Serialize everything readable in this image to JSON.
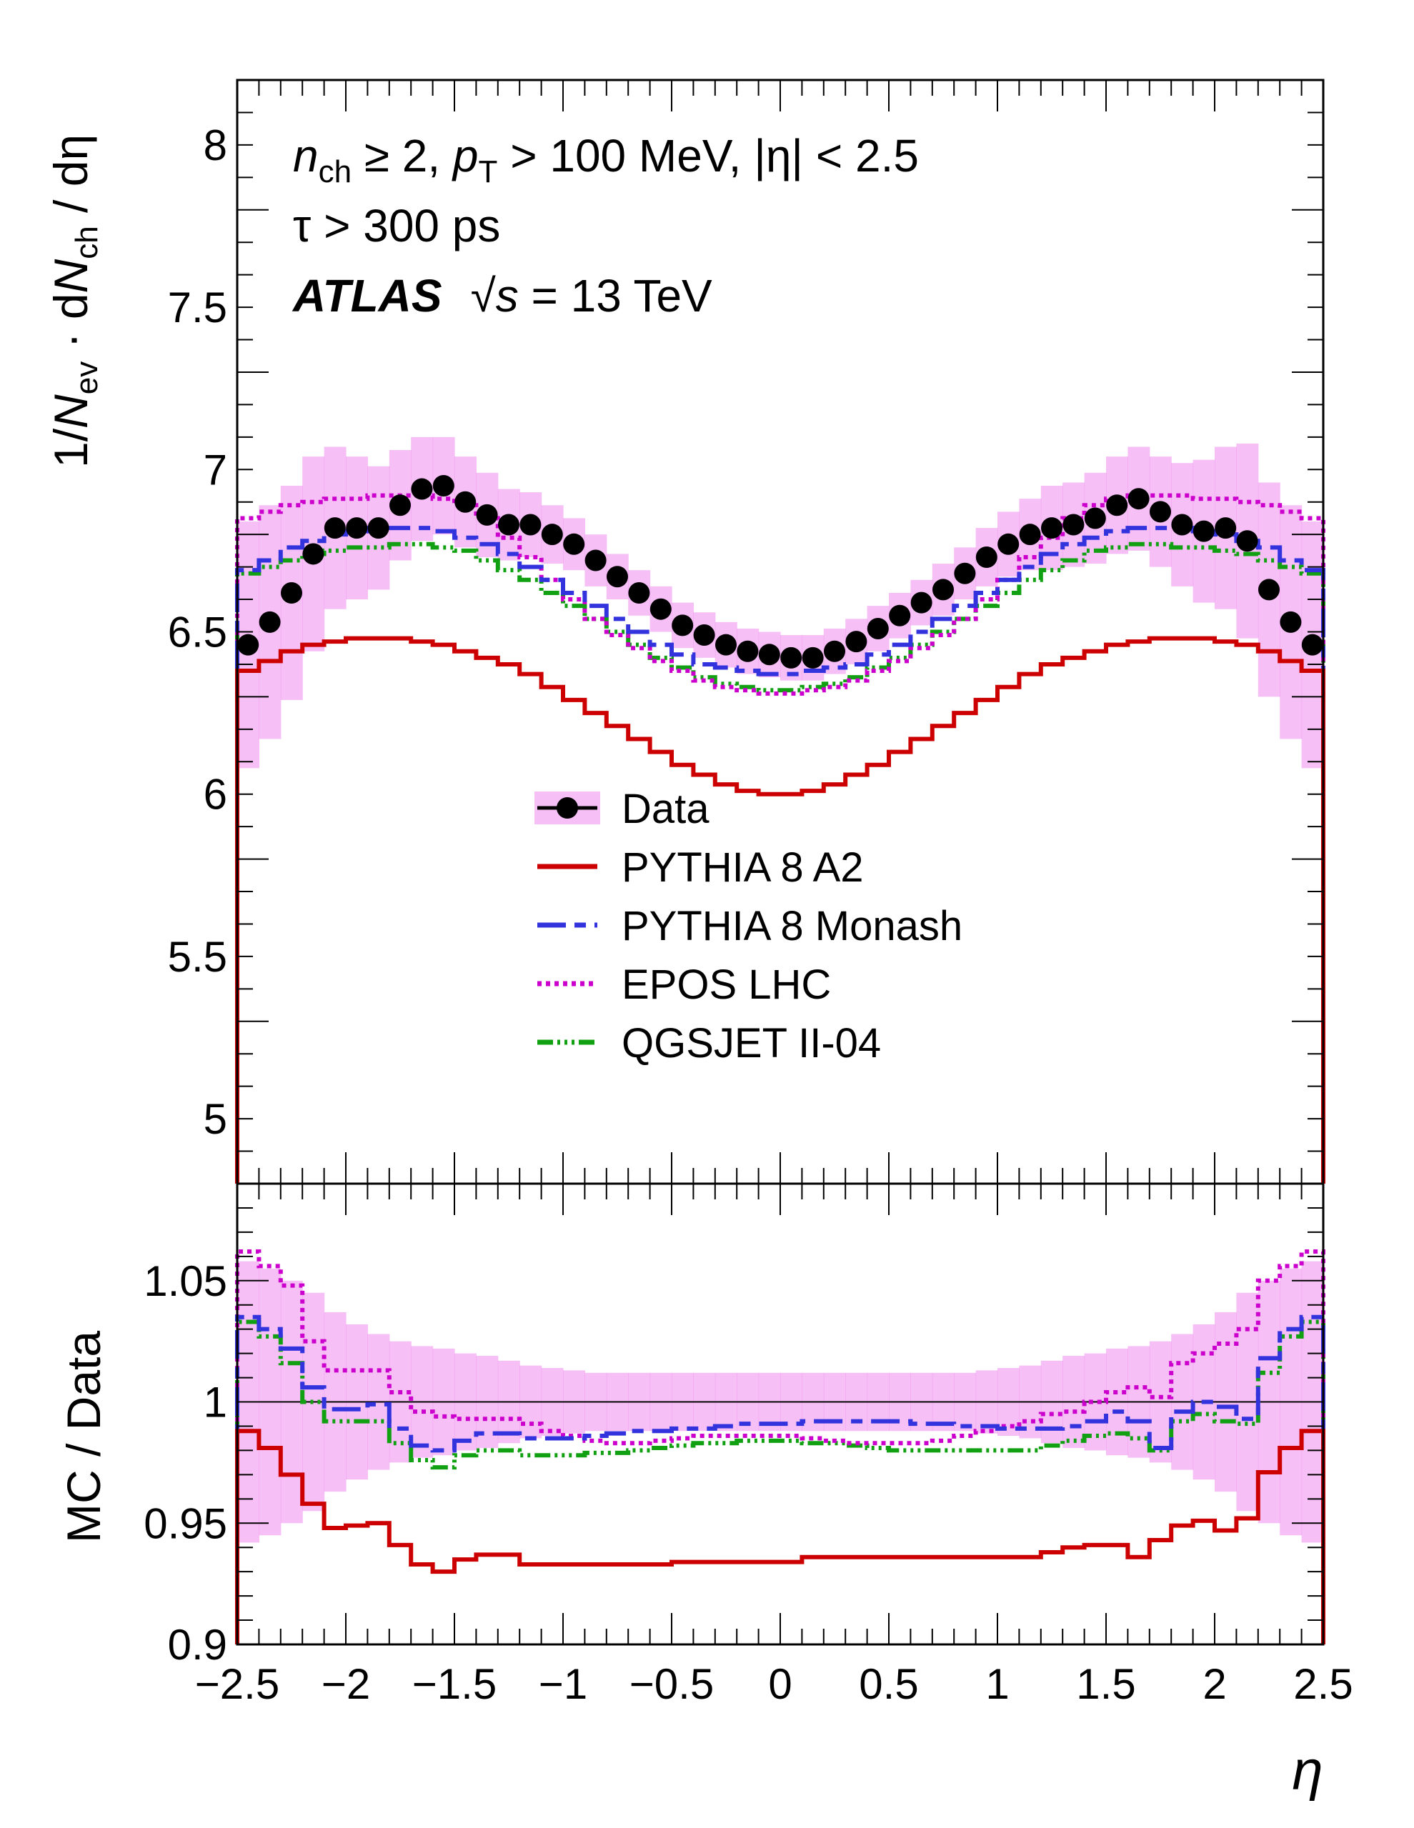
{
  "colors": {
    "data": "#000000",
    "band": "#ee82ee",
    "a2": "#cc0000",
    "monash": "#3333dd",
    "epos": "#cc00cc",
    "qgsjet": "#11a011"
  },
  "annotations": {
    "line1": {
      "nch": "n",
      "nch_sub": "ch",
      "ge": " ≥ 2, ",
      "pt": "p",
      "pt_sub": "T",
      "pt_cut": " > 100 MeV, ",
      "eta": "|η| < 2.5"
    },
    "line2": "τ > 300 ps",
    "line3": {
      "atlas": "ATLAS",
      "sqrt": "√",
      "s": "s",
      "energy": " = 13 TeV"
    }
  },
  "legend": [
    "Data",
    "PYTHIA 8 A2",
    "PYTHIA 8 Monash",
    "EPOS LHC",
    "QGSJET II-04"
  ],
  "chart_data": [
    {
      "type": "line",
      "panel": "main",
      "ylabel": "1/N_ev · dN_ch / dη",
      "ylabel_parts": {
        "a": "1/",
        "b": "N",
        "c": "ev",
        "d": " · d",
        "e": "N",
        "f": "ch",
        "g": " / dη"
      },
      "ylim": [
        4.8,
        8.2
      ],
      "xlim": [
        -2.5,
        2.5
      ],
      "yticks": [
        "5",
        "5.5",
        "6",
        "6.5",
        "7",
        "7.5",
        "8"
      ],
      "x": [
        -2.45,
        -2.35,
        -2.25,
        -2.15,
        -2.05,
        -1.95,
        -1.85,
        -1.75,
        -1.65,
        -1.55,
        -1.45,
        -1.35,
        -1.25,
        -1.15,
        -1.05,
        -0.95,
        -0.85,
        -0.75,
        -0.65,
        -0.55,
        -0.45,
        -0.35,
        -0.25,
        -0.15,
        -0.05,
        0.05,
        0.15,
        0.25,
        0.35,
        0.45,
        0.55,
        0.65,
        0.75,
        0.85,
        0.95,
        1.05,
        1.15,
        1.25,
        1.35,
        1.45,
        1.55,
        1.65,
        1.75,
        1.85,
        1.95,
        2.05,
        2.15,
        2.25,
        2.35,
        2.45
      ],
      "series": [
        {
          "name": "Data",
          "values": [
            6.46,
            6.53,
            6.62,
            6.74,
            6.82,
            6.82,
            6.82,
            6.89,
            6.94,
            6.95,
            6.9,
            6.86,
            6.83,
            6.83,
            6.8,
            6.77,
            6.72,
            6.67,
            6.62,
            6.57,
            6.52,
            6.49,
            6.46,
            6.44,
            6.43,
            6.42,
            6.42,
            6.44,
            6.47,
            6.51,
            6.55,
            6.59,
            6.63,
            6.68,
            6.73,
            6.77,
            6.8,
            6.82,
            6.83,
            6.85,
            6.89,
            6.91,
            6.87,
            6.83,
            6.81,
            6.82,
            6.78,
            6.63,
            6.53,
            6.46
          ],
          "band": [
            0.38,
            0.36,
            0.33,
            0.3,
            0.25,
            0.22,
            0.19,
            0.17,
            0.16,
            0.15,
            0.14,
            0.13,
            0.11,
            0.1,
            0.09,
            0.08,
            0.08,
            0.07,
            0.07,
            0.07,
            0.07,
            0.07,
            0.07,
            0.07,
            0.07,
            0.07,
            0.07,
            0.07,
            0.07,
            0.07,
            0.07,
            0.07,
            0.08,
            0.08,
            0.09,
            0.1,
            0.11,
            0.13,
            0.13,
            0.14,
            0.15,
            0.16,
            0.17,
            0.19,
            0.22,
            0.25,
            0.3,
            0.33,
            0.36,
            0.38
          ]
        },
        {
          "name": "PYTHIA 8 A2",
          "values": [
            6.38,
            6.41,
            6.44,
            6.46,
            6.47,
            6.48,
            6.48,
            6.48,
            6.47,
            6.46,
            6.44,
            6.42,
            6.4,
            6.37,
            6.33,
            6.29,
            6.25,
            6.21,
            6.17,
            6.13,
            6.09,
            6.06,
            6.03,
            6.01,
            6.0,
            6.0,
            6.01,
            6.03,
            6.06,
            6.09,
            6.13,
            6.17,
            6.21,
            6.25,
            6.29,
            6.33,
            6.37,
            6.4,
            6.42,
            6.44,
            6.46,
            6.47,
            6.48,
            6.48,
            6.48,
            6.47,
            6.46,
            6.44,
            6.41,
            6.38
          ]
        },
        {
          "name": "PYTHIA 8 Monash",
          "values": [
            6.69,
            6.72,
            6.76,
            6.78,
            6.8,
            6.81,
            6.82,
            6.82,
            6.82,
            6.81,
            6.79,
            6.77,
            6.74,
            6.7,
            6.66,
            6.62,
            6.58,
            6.54,
            6.5,
            6.46,
            6.43,
            6.4,
            6.39,
            6.38,
            6.37,
            6.37,
            6.38,
            6.39,
            6.4,
            6.43,
            6.46,
            6.5,
            6.54,
            6.58,
            6.62,
            6.66,
            6.7,
            6.74,
            6.77,
            6.79,
            6.81,
            6.82,
            6.82,
            6.82,
            6.81,
            6.8,
            6.78,
            6.76,
            6.72,
            6.69
          ]
        },
        {
          "name": "EPOS LHC",
          "values": [
            6.85,
            6.87,
            6.89,
            6.9,
            6.91,
            6.91,
            6.92,
            6.92,
            6.92,
            6.91,
            6.89,
            6.85,
            6.79,
            6.73,
            6.66,
            6.6,
            6.54,
            6.49,
            6.45,
            6.41,
            6.38,
            6.35,
            6.33,
            6.32,
            6.31,
            6.31,
            6.32,
            6.33,
            6.35,
            6.38,
            6.41,
            6.45,
            6.49,
            6.54,
            6.6,
            6.66,
            6.73,
            6.79,
            6.85,
            6.89,
            6.91,
            6.92,
            6.92,
            6.92,
            6.91,
            6.91,
            6.9,
            6.89,
            6.87,
            6.85
          ]
        },
        {
          "name": "QGSJET II-04",
          "values": [
            6.68,
            6.7,
            6.72,
            6.74,
            6.75,
            6.76,
            6.76,
            6.77,
            6.77,
            6.76,
            6.75,
            6.72,
            6.69,
            6.66,
            6.62,
            6.58,
            6.54,
            6.5,
            6.46,
            6.42,
            6.39,
            6.36,
            6.34,
            6.33,
            6.32,
            6.32,
            6.33,
            6.34,
            6.36,
            6.39,
            6.42,
            6.46,
            6.5,
            6.54,
            6.58,
            6.62,
            6.66,
            6.69,
            6.72,
            6.75,
            6.76,
            6.77,
            6.77,
            6.76,
            6.76,
            6.75,
            6.74,
            6.72,
            6.7,
            6.68
          ]
        }
      ]
    },
    {
      "type": "line",
      "panel": "ratio",
      "ylabel": "MC / Data",
      "xlabel": "η",
      "ylim": [
        0.9,
        1.09
      ],
      "xlim": [
        -2.5,
        2.5
      ],
      "yticks": [
        "0.9",
        "0.95",
        "1",
        "1.05"
      ],
      "xticks": [
        "−2.5",
        "−2",
        "−1.5",
        "−1",
        "−0.5",
        "0",
        "0.5",
        "1",
        "1.5",
        "2",
        "2.5"
      ],
      "x": [
        -2.45,
        -2.35,
        -2.25,
        -2.15,
        -2.05,
        -1.95,
        -1.85,
        -1.75,
        -1.65,
        -1.55,
        -1.45,
        -1.35,
        -1.25,
        -1.15,
        -1.05,
        -0.95,
        -0.85,
        -0.75,
        -0.65,
        -0.55,
        -0.45,
        -0.35,
        -0.25,
        -0.15,
        -0.05,
        0.05,
        0.15,
        0.25,
        0.35,
        0.45,
        0.55,
        0.65,
        0.75,
        0.85,
        0.95,
        1.05,
        1.15,
        1.25,
        1.35,
        1.45,
        1.55,
        1.65,
        1.75,
        1.85,
        1.95,
        2.05,
        2.15,
        2.25,
        2.35,
        2.45
      ],
      "series": [
        {
          "name": "Data uncertainty",
          "values": [
            1.0,
            1.0,
            1.0,
            1.0,
            1.0,
            1.0,
            1.0,
            1.0,
            1.0,
            1.0,
            1.0,
            1.0,
            1.0,
            1.0,
            1.0,
            1.0,
            1.0,
            1.0,
            1.0,
            1.0,
            1.0,
            1.0,
            1.0,
            1.0,
            1.0,
            1.0,
            1.0,
            1.0,
            1.0,
            1.0,
            1.0,
            1.0,
            1.0,
            1.0,
            1.0,
            1.0,
            1.0,
            1.0,
            1.0,
            1.0,
            1.0,
            1.0,
            1.0,
            1.0,
            1.0,
            1.0,
            1.0,
            1.0,
            1.0,
            1.0
          ],
          "band": [
            0.058,
            0.055,
            0.05,
            0.045,
            0.037,
            0.032,
            0.028,
            0.025,
            0.023,
            0.022,
            0.02,
            0.019,
            0.017,
            0.015,
            0.014,
            0.013,
            0.012,
            0.012,
            0.012,
            0.012,
            0.012,
            0.012,
            0.012,
            0.012,
            0.012,
            0.012,
            0.012,
            0.012,
            0.012,
            0.012,
            0.012,
            0.012,
            0.012,
            0.012,
            0.013,
            0.014,
            0.015,
            0.017,
            0.019,
            0.02,
            0.022,
            0.023,
            0.025,
            0.028,
            0.032,
            0.037,
            0.045,
            0.05,
            0.055,
            0.058
          ]
        },
        {
          "name": "PYTHIA 8 A2",
          "values": [
            0.988,
            0.981,
            0.97,
            0.958,
            0.948,
            0.949,
            0.95,
            0.941,
            0.933,
            0.93,
            0.935,
            0.937,
            0.937,
            0.933,
            0.933,
            0.933,
            0.933,
            0.933,
            0.933,
            0.933,
            0.934,
            0.934,
            0.934,
            0.934,
            0.934,
            0.934,
            0.936,
            0.936,
            0.936,
            0.936,
            0.936,
            0.936,
            0.936,
            0.936,
            0.936,
            0.936,
            0.936,
            0.938,
            0.94,
            0.941,
            0.941,
            0.936,
            0.943,
            0.949,
            0.951,
            0.947,
            0.952,
            0.971,
            0.981,
            0.988
          ]
        },
        {
          "name": "PYTHIA 8 Monash",
          "values": [
            1.035,
            1.03,
            1.022,
            1.006,
            0.997,
            0.997,
            0.999,
            0.989,
            0.982,
            0.98,
            0.984,
            0.987,
            0.987,
            0.985,
            0.985,
            0.985,
            0.986,
            0.987,
            0.988,
            0.988,
            0.989,
            0.989,
            0.99,
            0.991,
            0.991,
            0.991,
            0.992,
            0.992,
            0.992,
            0.992,
            0.992,
            0.991,
            0.991,
            0.99,
            0.99,
            0.989,
            0.989,
            0.989,
            0.99,
            0.992,
            0.996,
            0.992,
            0.981,
            0.996,
            1.0,
            0.998,
            0.993,
            1.018,
            1.03,
            1.035
          ]
        },
        {
          "name": "EPOS LHC",
          "values": [
            1.062,
            1.056,
            1.048,
            1.025,
            1.013,
            1.013,
            1.013,
            1.004,
            0.996,
            0.994,
            0.993,
            0.993,
            0.993,
            0.991,
            0.988,
            0.986,
            0.984,
            0.983,
            0.983,
            0.984,
            0.985,
            0.986,
            0.986,
            0.986,
            0.986,
            0.986,
            0.985,
            0.984,
            0.983,
            0.983,
            0.983,
            0.983,
            0.984,
            0.986,
            0.988,
            0.99,
            0.992,
            0.995,
            0.996,
            1.0,
            1.004,
            1.006,
            1.002,
            1.016,
            1.02,
            1.024,
            1.03,
            1.05,
            1.056,
            1.062
          ]
        },
        {
          "name": "QGSJET II-04",
          "values": [
            1.033,
            1.027,
            1.016,
            1.0,
            0.992,
            0.992,
            0.992,
            0.983,
            0.976,
            0.973,
            0.978,
            0.98,
            0.98,
            0.978,
            0.978,
            0.978,
            0.979,
            0.979,
            0.98,
            0.981,
            0.982,
            0.983,
            0.983,
            0.984,
            0.984,
            0.984,
            0.983,
            0.983,
            0.982,
            0.981,
            0.98,
            0.98,
            0.98,
            0.98,
            0.98,
            0.98,
            0.98,
            0.982,
            0.984,
            0.986,
            0.987,
            0.985,
            0.98,
            0.992,
            0.995,
            0.992,
            0.991,
            1.012,
            1.027,
            1.033
          ]
        }
      ]
    }
  ]
}
